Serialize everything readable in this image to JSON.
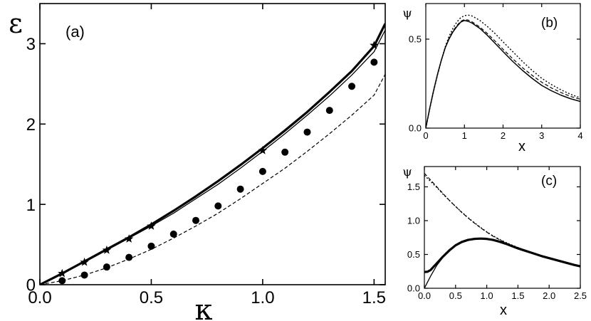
{
  "chart_data": [
    {
      "type": "line",
      "panel_label": "(a)",
      "xlabel": "κ",
      "ylabel": "ε",
      "xlim": [
        0,
        1.55
      ],
      "ylim": [
        0,
        3.5
      ],
      "x_ticks": [
        "0.0",
        "0.5",
        "1.0",
        "1.5"
      ],
      "x_tick_values": [
        0,
        0.5,
        1.0,
        1.5
      ],
      "y_ticks": [
        "0",
        "1",
        "2",
        "3"
      ],
      "y_tick_values": [
        0,
        1,
        2,
        3
      ],
      "series": [
        {
          "style": "thick-solid",
          "x": [
            0,
            0.1,
            0.2,
            0.3,
            0.4,
            0.5,
            0.6,
            0.7,
            0.8,
            0.9,
            1.0,
            1.1,
            1.2,
            1.3,
            1.4,
            1.5,
            1.55
          ],
          "y": [
            0,
            0.14,
            0.29,
            0.44,
            0.59,
            0.75,
            0.92,
            1.1,
            1.29,
            1.49,
            1.7,
            1.92,
            2.15,
            2.4,
            2.66,
            2.97,
            3.25
          ]
        },
        {
          "style": "thin-solid",
          "x": [
            0,
            0.1,
            0.2,
            0.3,
            0.4,
            0.5,
            0.6,
            0.7,
            0.8,
            0.9,
            1.0,
            1.1,
            1.2,
            1.3,
            1.4,
            1.5,
            1.55
          ],
          "y": [
            0,
            0.14,
            0.28,
            0.43,
            0.58,
            0.73,
            0.89,
            1.07,
            1.25,
            1.45,
            1.66,
            1.88,
            2.11,
            2.35,
            2.61,
            2.9,
            3.17
          ]
        },
        {
          "style": "dashed",
          "x": [
            0,
            0.1,
            0.2,
            0.3,
            0.4,
            0.5,
            0.6,
            0.7,
            0.8,
            0.9,
            1.0,
            1.1,
            1.2,
            1.3,
            1.4,
            1.5,
            1.55
          ],
          "y": [
            0,
            0.05,
            0.12,
            0.21,
            0.32,
            0.44,
            0.58,
            0.73,
            0.89,
            1.07,
            1.26,
            1.45,
            1.66,
            1.88,
            2.11,
            2.36,
            2.62
          ]
        },
        {
          "style": "stars",
          "x": [
            0.1,
            0.2,
            0.3,
            0.4,
            0.5,
            1.0,
            1.5
          ],
          "y": [
            0.14,
            0.28,
            0.43,
            0.57,
            0.73,
            1.67,
            2.98
          ]
        },
        {
          "style": "dots",
          "x": [
            0.1,
            0.2,
            0.3,
            0.4,
            0.5,
            0.6,
            0.7,
            0.8,
            0.9,
            1.0,
            1.1,
            1.2,
            1.3,
            1.4,
            1.5
          ],
          "y": [
            0.05,
            0.12,
            0.22,
            0.34,
            0.48,
            0.63,
            0.8,
            0.98,
            1.19,
            1.41,
            1.65,
            1.9,
            2.17,
            2.47,
            2.77
          ]
        }
      ]
    },
    {
      "type": "line",
      "panel_label": "(b)",
      "xlabel": "x",
      "ylabel": "ψ",
      "xlim": [
        0,
        4
      ],
      "ylim": [
        0,
        0.7
      ],
      "x_ticks": [
        "0",
        "1",
        "2",
        "3",
        "4"
      ],
      "x_tick_values": [
        0,
        1,
        2,
        3,
        4
      ],
      "y_ticks": [
        "0.0",
        "0.5"
      ],
      "y_tick_values": [
        0,
        0.5
      ],
      "series": [
        {
          "style": "solid",
          "x": [
            0,
            0.1,
            0.2,
            0.3,
            0.4,
            0.5,
            0.6,
            0.7,
            0.8,
            0.9,
            1.0,
            1.1,
            1.2,
            1.4,
            1.6,
            1.8,
            2.0,
            2.25,
            2.5,
            2.75,
            3.0,
            3.25,
            3.5,
            3.75,
            4.0
          ],
          "y": [
            0,
            0.11,
            0.21,
            0.3,
            0.38,
            0.45,
            0.5,
            0.54,
            0.57,
            0.595,
            0.605,
            0.6,
            0.59,
            0.56,
            0.52,
            0.475,
            0.43,
            0.375,
            0.325,
            0.28,
            0.24,
            0.21,
            0.185,
            0.165,
            0.15
          ]
        },
        {
          "style": "dashed",
          "x": [
            0,
            0.1,
            0.2,
            0.3,
            0.4,
            0.5,
            0.6,
            0.7,
            0.8,
            0.9,
            1.0,
            1.1,
            1.2,
            1.4,
            1.6,
            1.8,
            2.0,
            2.25,
            2.5,
            2.75,
            3.0,
            3.25,
            3.5,
            3.75,
            4.0
          ],
          "y": [
            0,
            0.11,
            0.21,
            0.3,
            0.38,
            0.45,
            0.505,
            0.545,
            0.575,
            0.6,
            0.61,
            0.607,
            0.597,
            0.568,
            0.53,
            0.488,
            0.443,
            0.39,
            0.34,
            0.297,
            0.258,
            0.226,
            0.2,
            0.178,
            0.162
          ]
        },
        {
          "style": "dotted",
          "x": [
            0,
            0.1,
            0.2,
            0.3,
            0.4,
            0.5,
            0.6,
            0.7,
            0.8,
            0.9,
            1.0,
            1.1,
            1.2,
            1.4,
            1.6,
            1.8,
            2.0,
            2.25,
            2.5,
            2.75,
            3.0,
            3.25,
            3.5,
            3.75,
            4.0
          ],
          "y": [
            0,
            0.105,
            0.205,
            0.295,
            0.38,
            0.455,
            0.515,
            0.56,
            0.595,
            0.62,
            0.632,
            0.635,
            0.63,
            0.605,
            0.57,
            0.53,
            0.485,
            0.43,
            0.375,
            0.325,
            0.28,
            0.245,
            0.215,
            0.19,
            0.17
          ]
        }
      ]
    },
    {
      "type": "line",
      "panel_label": "(c)",
      "xlabel": "x",
      "ylabel": "ψ",
      "xlim": [
        0,
        2.5
      ],
      "ylim": [
        0,
        1.8
      ],
      "x_ticks": [
        "0.0",
        "0.5",
        "1.0",
        "1.5",
        "2.0",
        "2.5"
      ],
      "x_tick_values": [
        0,
        0.5,
        1.0,
        1.5,
        2.0,
        2.5
      ],
      "y_ticks": [
        "0.0",
        "0.5",
        "1.0",
        "1.5"
      ],
      "y_tick_values": [
        0,
        0.5,
        1.0,
        1.5
      ],
      "series": [
        {
          "style": "thin-solid",
          "x": [
            0,
            0.05,
            0.1,
            0.2,
            0.3,
            0.4,
            0.5,
            0.6,
            0.7,
            0.8,
            0.9,
            1.0,
            1.1,
            1.2,
            1.3,
            1.4,
            1.5,
            1.6,
            1.7,
            1.8,
            1.9,
            2.0,
            2.1,
            2.2,
            2.3,
            2.4,
            2.5
          ],
          "y": [
            0,
            0.09,
            0.18,
            0.34,
            0.46,
            0.56,
            0.635,
            0.685,
            0.715,
            0.73,
            0.735,
            0.73,
            0.715,
            0.69,
            0.66,
            0.625,
            0.59,
            0.56,
            0.53,
            0.5,
            0.47,
            0.445,
            0.42,
            0.395,
            0.37,
            0.345,
            0.325
          ]
        },
        {
          "style": "thick-solid",
          "x": [
            0,
            0.05,
            0.1,
            0.2,
            0.3,
            0.4,
            0.5,
            0.6,
            0.7,
            0.8,
            0.9,
            1.0,
            1.1,
            1.2,
            1.3,
            1.4,
            1.5,
            1.6,
            1.7,
            1.8,
            1.9,
            2.0,
            2.1,
            2.2,
            2.3,
            2.4,
            2.5
          ],
          "y": [
            0.24,
            0.245,
            0.27,
            0.37,
            0.47,
            0.56,
            0.635,
            0.685,
            0.715,
            0.73,
            0.735,
            0.73,
            0.715,
            0.69,
            0.66,
            0.625,
            0.59,
            0.56,
            0.53,
            0.5,
            0.47,
            0.445,
            0.42,
            0.395,
            0.37,
            0.345,
            0.325
          ]
        },
        {
          "style": "dashed",
          "x": [
            0,
            0.1,
            0.2,
            0.3,
            0.4,
            0.5,
            0.6,
            0.7,
            0.8,
            0.9,
            1.0,
            1.1,
            1.2,
            1.3,
            1.4,
            1.5,
            1.6
          ],
          "y": [
            1.7,
            1.6,
            1.5,
            1.4,
            1.3,
            1.21,
            1.12,
            1.04,
            0.965,
            0.895,
            0.83,
            0.77,
            0.72,
            0.675,
            0.635,
            0.6,
            0.565
          ]
        },
        {
          "style": "dotted",
          "x": [
            0,
            0.1,
            0.2,
            0.3,
            0.4,
            0.5,
            0.6,
            0.7,
            0.8,
            0.9,
            1.0,
            1.1,
            1.2,
            1.3,
            1.4,
            1.5,
            1.6
          ],
          "y": [
            1.67,
            1.58,
            1.49,
            1.39,
            1.3,
            1.21,
            1.125,
            1.045,
            0.97,
            0.9,
            0.835,
            0.775,
            0.725,
            0.68,
            0.64,
            0.603,
            0.568
          ]
        }
      ]
    }
  ]
}
